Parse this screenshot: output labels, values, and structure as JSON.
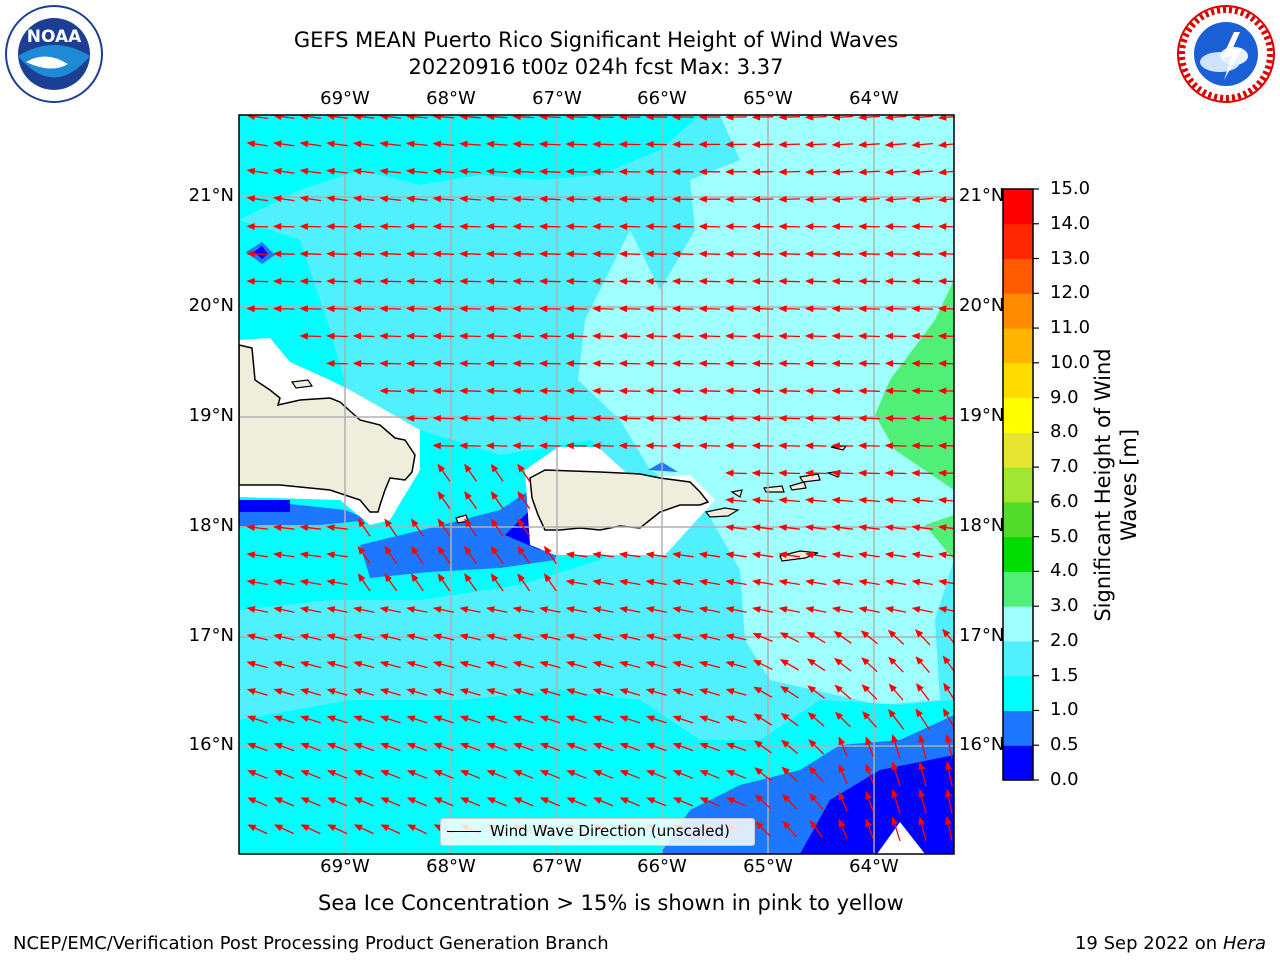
{
  "title": {
    "line1": "GEFS MEAN Puerto Rico Significant Height of Wind Waves",
    "line2": "20220916 t00z 024h fcst   Max: 3.37"
  },
  "logos": {
    "left": "NOAA",
    "right": "NATIONAL WEATHER SERVICE"
  },
  "axes": {
    "lon_ticks": [
      "69°W",
      "68°W",
      "67°W",
      "66°W",
      "65°W",
      "64°W"
    ],
    "lat_ticks": [
      "21°N",
      "20°N",
      "19°N",
      "18°N",
      "17°N",
      "16°N"
    ]
  },
  "colorbar": {
    "label_line1": "Significant Height of Wind",
    "label_line2": "Waves [m]",
    "ticks": [
      "0.0",
      "0.5",
      "1.0",
      "1.5",
      "2.0",
      "3.0",
      "4.0",
      "5.0",
      "6.0",
      "7.0",
      "8.0",
      "9.0",
      "10.0",
      "11.0",
      "12.0",
      "13.0",
      "14.0",
      "15.0"
    ],
    "colors": [
      "#0000ff",
      "#1e78ff",
      "#00ffff",
      "#50f0ff",
      "#a0ffff",
      "#50f078",
      "#00dc00",
      "#50dc28",
      "#a0e632",
      "#e6e632",
      "#ffff00",
      "#ffdc00",
      "#ffb400",
      "#ff8c00",
      "#ff5a00",
      "#ff2800",
      "#ff0000"
    ]
  },
  "legend": {
    "label": "Wind Wave Direction (unscaled)"
  },
  "caption": "Sea Ice Concentration > 15% is shown in pink to yellow",
  "footer": {
    "left": "NCEP/EMC/Verification Post Processing Product Generation Branch",
    "date": "19 Sep 2022 on",
    "machine": "Hera"
  },
  "map_colors": {
    "land": "#efeddc",
    "arrow": "#ff0000",
    "grid": "#b0b0b0",
    "band_0_05": "#0000ff",
    "band_05_10": "#1e78ff",
    "band_10_15": "#00ffff",
    "band_15_20": "#50f0ff",
    "band_20_30": "#a0ffff",
    "band_30_40": "#50f078"
  }
}
